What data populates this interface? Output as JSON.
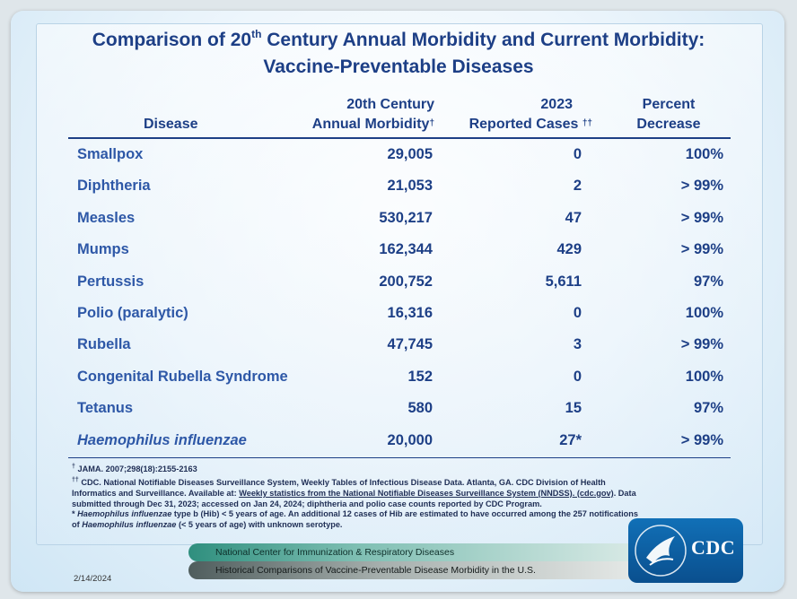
{
  "title": {
    "line1_a": "Comparison of 20",
    "line1_sup": "th",
    "line1_b": " Century Annual Morbidity and Current Morbidity:",
    "line2": "Vaccine-Preventable Diseases"
  },
  "headers": {
    "disease": "Disease",
    "annual_l1": "20th Century",
    "annual_l2": "Annual Morbidity",
    "annual_mark": "†",
    "reported_l1": "2023",
    "reported_l2": "Reported Cases",
    "reported_mark": "††",
    "percent_l1": "Percent",
    "percent_l2": "Decrease"
  },
  "rows": [
    {
      "disease": "Smallpox",
      "annual": "29,005",
      "reported": "0",
      "percent": "100%"
    },
    {
      "disease": "Diphtheria",
      "annual": "21,053",
      "reported": "2",
      "percent": "> 99%"
    },
    {
      "disease": "Measles",
      "annual": "530,217",
      "reported": "47",
      "percent": "> 99%"
    },
    {
      "disease": "Mumps",
      "annual": "162,344",
      "reported": "429",
      "percent": "> 99%"
    },
    {
      "disease": "Pertussis",
      "annual": "200,752",
      "reported": "5,611",
      "percent": "97%"
    },
    {
      "disease": "Polio (paralytic)",
      "annual": "16,316",
      "reported": "0",
      "percent": "100%"
    },
    {
      "disease": "Rubella",
      "annual": "47,745",
      "reported": "3",
      "percent": "> 99%"
    },
    {
      "disease": "Congenital Rubella Syndrome",
      "annual": "152",
      "reported": "0",
      "percent": "100%"
    },
    {
      "disease": "Tetanus",
      "annual": "580",
      "reported": "15",
      "percent": "97%"
    },
    {
      "disease": "Haemophilus influenzae",
      "annual": "20,000",
      "reported": "27*",
      "percent": "> 99%"
    }
  ],
  "footnotes": {
    "f1_mark": "†",
    "f1": " JAMA. 2007;298(18):2155-2163",
    "f2_mark": "††",
    "f2_a": " CDC. National Notifiable Diseases Surveillance System, Weekly Tables of Infectious Disease Data. Atlanta, GA. CDC Division of Health Informatics and Surveillance. Available at: ",
    "f2_link": "Weekly statistics from the National Notifiable Diseases Surveillance System (NNDSS). (cdc.gov)",
    "f2_b": ". Data submitted through Dec 31, 2023; accessed on Jan 24, 2024; diphtheria and polio case counts reported by CDC Program.",
    "f3_a": "* ",
    "f3_i1": "Haemophilus influenzae",
    "f3_b": " type b (Hib) < 5 years of age.  An additional 12 cases of Hib are estimated to have occurred among the 257 notifications of ",
    "f3_i2": "Haemophilus influenzae",
    "f3_c": " (< 5 years of age) with unknown serotype."
  },
  "footer": {
    "bar1": "National Center for Immunization & Respiratory Diseases",
    "bar2": "Historical Comparisons of Vaccine-Preventable Disease Morbidity in the U.S.",
    "date": "2/14/2024",
    "logo_text": "CDC"
  },
  "colors": {
    "title": "#1d3f86",
    "disease_name": "#2e58a7",
    "bar_teal": "#2f8f7e",
    "bar_gray": "#4f5d5d",
    "logo_blue": "#1170b7"
  }
}
